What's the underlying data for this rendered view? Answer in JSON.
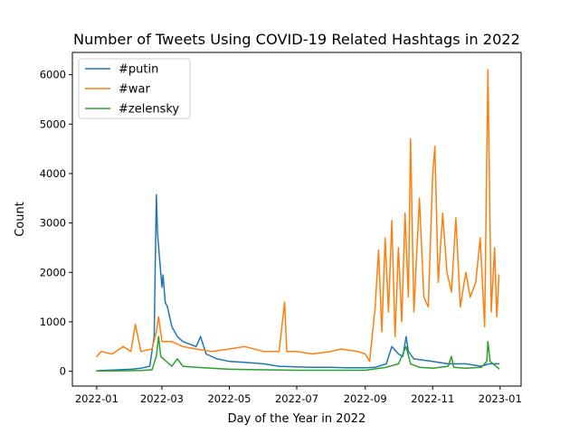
{
  "chart_data": {
    "type": "line",
    "title": "Number of Tweets Using COVID-19 Related Hashtags in 2022",
    "xlabel": "Day of the Year in 2022",
    "ylabel": "Count",
    "xlim": [
      "2021-12-10",
      "2023-01-20"
    ],
    "ylim": [
      -300,
      6450
    ],
    "x_ticks": [
      "2022-01",
      "2022-03",
      "2022-05",
      "2022-07",
      "2022-09",
      "2022-11",
      "2023-01"
    ],
    "y_ticks": [
      "0",
      "1000",
      "2000",
      "3000",
      "4000",
      "5000",
      "6000"
    ],
    "grid": false,
    "legend_position": "upper-left",
    "series": [
      {
        "name": "#putin",
        "color": "#1f77b4",
        "points": [
          [
            "2022-01-01",
            10
          ],
          [
            "2022-01-10",
            20
          ],
          [
            "2022-01-20",
            30
          ],
          [
            "2022-02-01",
            40
          ],
          [
            "2022-02-10",
            60
          ],
          [
            "2022-02-18",
            100
          ],
          [
            "2022-02-22",
            700
          ],
          [
            "2022-02-24",
            3570
          ],
          [
            "2022-02-25",
            2800
          ],
          [
            "2022-02-27",
            2250
          ],
          [
            "2022-03-01",
            1700
          ],
          [
            "2022-03-02",
            1950
          ],
          [
            "2022-03-04",
            1400
          ],
          [
            "2022-03-06",
            1300
          ],
          [
            "2022-03-10",
            900
          ],
          [
            "2022-03-15",
            700
          ],
          [
            "2022-03-20",
            600
          ],
          [
            "2022-04-01",
            500
          ],
          [
            "2022-04-05",
            700
          ],
          [
            "2022-04-10",
            350
          ],
          [
            "2022-04-20",
            250
          ],
          [
            "2022-05-01",
            200
          ],
          [
            "2022-05-15",
            180
          ],
          [
            "2022-06-01",
            150
          ],
          [
            "2022-06-15",
            100
          ],
          [
            "2022-07-01",
            90
          ],
          [
            "2022-07-15",
            80
          ],
          [
            "2022-08-01",
            80
          ],
          [
            "2022-08-15",
            70
          ],
          [
            "2022-09-01",
            70
          ],
          [
            "2022-09-10",
            80
          ],
          [
            "2022-09-20",
            150
          ],
          [
            "2022-09-25",
            500
          ],
          [
            "2022-10-01",
            350
          ],
          [
            "2022-10-05",
            300
          ],
          [
            "2022-10-08",
            700
          ],
          [
            "2022-10-10",
            400
          ],
          [
            "2022-10-15",
            250
          ],
          [
            "2022-11-01",
            200
          ],
          [
            "2022-11-15",
            150
          ],
          [
            "2022-12-01",
            150
          ],
          [
            "2022-12-15",
            100
          ],
          [
            "2022-12-22",
            150
          ],
          [
            "2022-12-31",
            150
          ]
        ]
      },
      {
        "name": "#war",
        "color": "#ff7f0e",
        "points": [
          [
            "2022-01-01",
            300
          ],
          [
            "2022-01-05",
            400
          ],
          [
            "2022-01-15",
            350
          ],
          [
            "2022-01-25",
            500
          ],
          [
            "2022-02-01",
            400
          ],
          [
            "2022-02-05",
            950
          ],
          [
            "2022-02-10",
            400
          ],
          [
            "2022-02-20",
            450
          ],
          [
            "2022-02-24",
            800
          ],
          [
            "2022-02-26",
            1100
          ],
          [
            "2022-03-01",
            600
          ],
          [
            "2022-03-10",
            600
          ],
          [
            "2022-03-20",
            500
          ],
          [
            "2022-04-01",
            450
          ],
          [
            "2022-04-15",
            400
          ],
          [
            "2022-05-01",
            450
          ],
          [
            "2022-05-15",
            500
          ],
          [
            "2022-06-01",
            400
          ],
          [
            "2022-06-15",
            400
          ],
          [
            "2022-06-20",
            1400
          ],
          [
            "2022-06-22",
            400
          ],
          [
            "2022-07-01",
            400
          ],
          [
            "2022-07-15",
            350
          ],
          [
            "2022-08-01",
            400
          ],
          [
            "2022-08-10",
            450
          ],
          [
            "2022-08-25",
            400
          ],
          [
            "2022-09-01",
            350
          ],
          [
            "2022-09-05",
            200
          ],
          [
            "2022-09-10",
            1300
          ],
          [
            "2022-09-13",
            2450
          ],
          [
            "2022-09-16",
            800
          ],
          [
            "2022-09-19",
            2700
          ],
          [
            "2022-09-22",
            1200
          ],
          [
            "2022-09-25",
            3050
          ],
          [
            "2022-09-28",
            700
          ],
          [
            "2022-10-01",
            2500
          ],
          [
            "2022-10-04",
            1000
          ],
          [
            "2022-10-07",
            3200
          ],
          [
            "2022-10-10",
            1500
          ],
          [
            "2022-10-12",
            4700
          ],
          [
            "2022-10-15",
            1200
          ],
          [
            "2022-10-20",
            3500
          ],
          [
            "2022-10-24",
            1500
          ],
          [
            "2022-10-28",
            1300
          ],
          [
            "2022-11-01",
            4000
          ],
          [
            "2022-11-03",
            4550
          ],
          [
            "2022-11-06",
            1800
          ],
          [
            "2022-11-10",
            3200
          ],
          [
            "2022-11-14",
            2000
          ],
          [
            "2022-11-18",
            1600
          ],
          [
            "2022-11-22",
            3100
          ],
          [
            "2022-11-26",
            1300
          ],
          [
            "2022-12-01",
            2000
          ],
          [
            "2022-12-05",
            1500
          ],
          [
            "2022-12-10",
            1800
          ],
          [
            "2022-12-14",
            2700
          ],
          [
            "2022-12-18",
            900
          ],
          [
            "2022-12-21",
            6100
          ],
          [
            "2022-12-24",
            1200
          ],
          [
            "2022-12-27",
            2500
          ],
          [
            "2022-12-29",
            1100
          ],
          [
            "2022-12-31",
            1950
          ]
        ]
      },
      {
        "name": "#zelensky",
        "color": "#2ca02c",
        "points": [
          [
            "2022-01-01",
            5
          ],
          [
            "2022-01-20",
            10
          ],
          [
            "2022-02-10",
            15
          ],
          [
            "2022-02-20",
            30
          ],
          [
            "2022-02-24",
            300
          ],
          [
            "2022-02-26",
            700
          ],
          [
            "2022-02-28",
            300
          ],
          [
            "2022-03-05",
            200
          ],
          [
            "2022-03-10",
            100
          ],
          [
            "2022-03-15",
            250
          ],
          [
            "2022-03-20",
            100
          ],
          [
            "2022-04-01",
            80
          ],
          [
            "2022-04-15",
            60
          ],
          [
            "2022-05-01",
            40
          ],
          [
            "2022-06-01",
            30
          ],
          [
            "2022-07-01",
            20
          ],
          [
            "2022-08-01",
            20
          ],
          [
            "2022-09-01",
            20
          ],
          [
            "2022-09-20",
            80
          ],
          [
            "2022-10-01",
            150
          ],
          [
            "2022-10-08",
            500
          ],
          [
            "2022-10-12",
            150
          ],
          [
            "2022-10-20",
            80
          ],
          [
            "2022-11-01",
            60
          ],
          [
            "2022-11-15",
            100
          ],
          [
            "2022-11-18",
            300
          ],
          [
            "2022-11-20",
            80
          ],
          [
            "2022-12-01",
            60
          ],
          [
            "2022-12-15",
            80
          ],
          [
            "2022-12-20",
            200
          ],
          [
            "2022-12-21",
            600
          ],
          [
            "2022-12-23",
            200
          ],
          [
            "2022-12-31",
            50
          ]
        ]
      }
    ]
  }
}
